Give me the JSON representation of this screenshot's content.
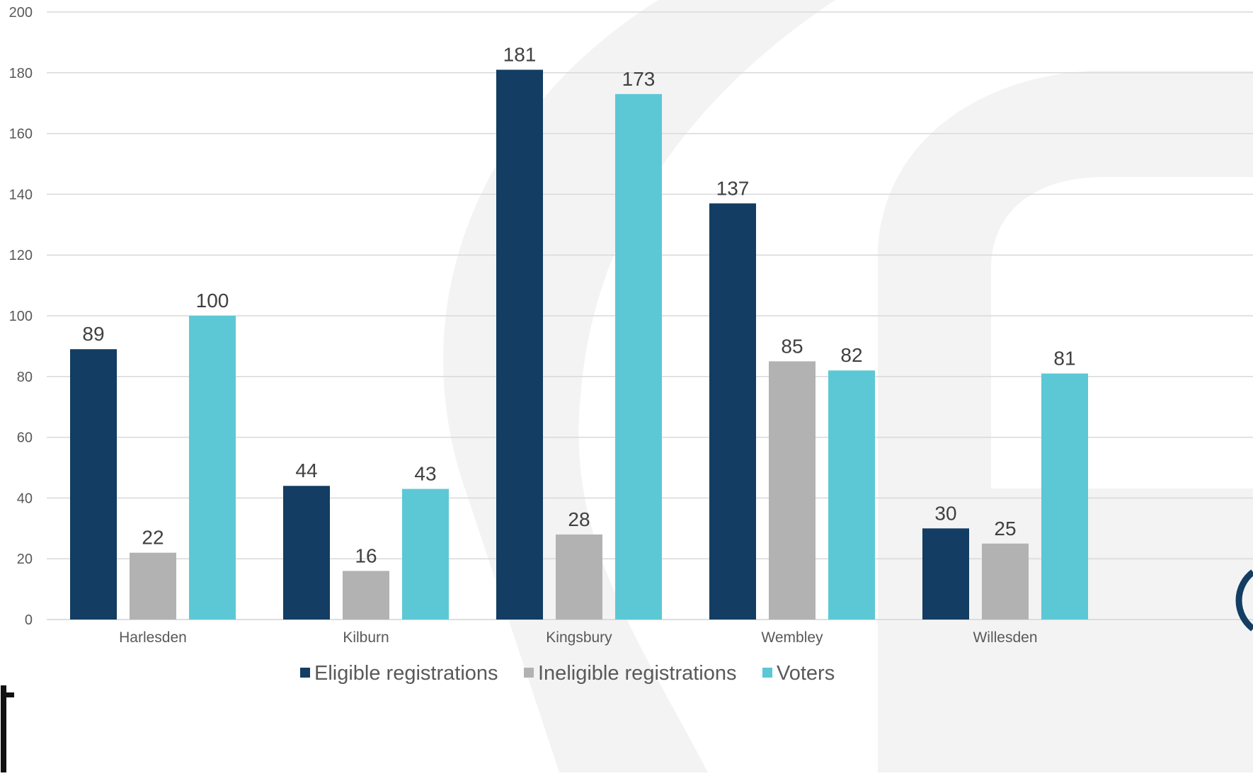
{
  "chart_data": {
    "type": "bar",
    "categories": [
      "Harlesden",
      "Kilburn",
      "Kingsbury",
      "Wembley",
      "Willesden"
    ],
    "series": [
      {
        "name": "Eligible registrations",
        "color": "#133d62",
        "values": [
          89,
          44,
          181,
          137,
          30
        ]
      },
      {
        "name": "Ineligible registrations",
        "color": "#b2b2b2",
        "values": [
          22,
          16,
          28,
          85,
          25
        ]
      },
      {
        "name": "Voters",
        "color": "#5cc8d5",
        "values": [
          100,
          43,
          173,
          82,
          81
        ]
      }
    ],
    "ylim": [
      0,
      200
    ],
    "yticks": [
      0,
      20,
      40,
      60,
      80,
      100,
      120,
      140,
      160,
      180,
      200
    ],
    "grid": true,
    "legend": "bottom",
    "data_labels": true,
    "colors": {
      "gridline": "#d9d9d9",
      "watermark": "#f3f3f3",
      "axis_text": "#595959"
    }
  }
}
